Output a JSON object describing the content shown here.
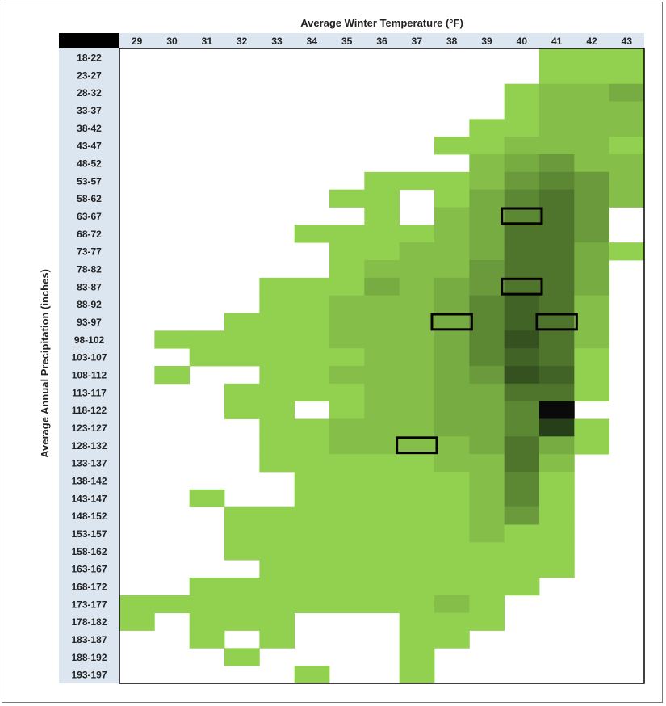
{
  "chart_data": {
    "type": "heatmap",
    "title": "",
    "xlabel": "Average Winter Temperature (°F)",
    "ylabel": "Average Annual Precipitation (inches)",
    "x_categories": [
      "29",
      "30",
      "31",
      "32",
      "33",
      "34",
      "35",
      "36",
      "37",
      "38",
      "39",
      "40",
      "41",
      "42",
      "43"
    ],
    "y_categories": [
      "18-22",
      "23-27",
      "28-32",
      "33-37",
      "38-42",
      "43-47",
      "48-52",
      "53-57",
      "58-62",
      "63-67",
      "68-72",
      "73-77",
      "78-82",
      "83-87",
      "88-92",
      "93-97",
      "98-102",
      "103-107",
      "108-112",
      "113-117",
      "118-122",
      "123-127",
      "128-132",
      "133-137",
      "138-142",
      "143-147",
      "148-152",
      "153-157",
      "158-162",
      "163-167",
      "168-172",
      "173-177",
      "178-182",
      "183-187",
      "188-192",
      "193-197"
    ],
    "value_scale": "relative intensity 0-10 (0 = empty cell, higher = darker green)",
    "colors": {
      "empty": "#ffffff",
      "low": "#92d050",
      "high": "#263f18",
      "max": "#0a0a0a",
      "header_bg": "#dce6f1",
      "corner": "#000000",
      "highlight_border": "#000000"
    },
    "values": [
      [
        0,
        0,
        0,
        0,
        0,
        0,
        0,
        0,
        0,
        0,
        0,
        0,
        1,
        1,
        1
      ],
      [
        0,
        0,
        0,
        0,
        0,
        0,
        0,
        0,
        0,
        0,
        0,
        0,
        1,
        1,
        1
      ],
      [
        0,
        0,
        0,
        0,
        0,
        0,
        0,
        0,
        0,
        0,
        0,
        1,
        2,
        2,
        3
      ],
      [
        0,
        0,
        0,
        0,
        0,
        0,
        0,
        0,
        0,
        0,
        0,
        1,
        2,
        2,
        2
      ],
      [
        0,
        0,
        0,
        0,
        0,
        0,
        0,
        0,
        0,
        0,
        1,
        1,
        2,
        2,
        2
      ],
      [
        0,
        0,
        0,
        0,
        0,
        0,
        0,
        0,
        0,
        1,
        1,
        2,
        2,
        2,
        1
      ],
      [
        0,
        0,
        0,
        0,
        0,
        0,
        0,
        0,
        0,
        0,
        2,
        3,
        4,
        2,
        2
      ],
      [
        0,
        0,
        0,
        0,
        0,
        0,
        0,
        1,
        1,
        1,
        2,
        4,
        5,
        4,
        2
      ],
      [
        0,
        0,
        0,
        0,
        0,
        0,
        1,
        1,
        0,
        1,
        3,
        5,
        6,
        4,
        2
      ],
      [
        0,
        0,
        0,
        0,
        0,
        0,
        0,
        1,
        0,
        2,
        3,
        5,
        6,
        4,
        0
      ],
      [
        0,
        0,
        0,
        0,
        0,
        1,
        1,
        1,
        1,
        2,
        3,
        6,
        6,
        4,
        0
      ],
      [
        0,
        0,
        0,
        0,
        0,
        0,
        1,
        1,
        2,
        2,
        3,
        6,
        6,
        3,
        1
      ],
      [
        0,
        0,
        0,
        0,
        0,
        0,
        1,
        2,
        2,
        2,
        4,
        6,
        6,
        3,
        0
      ],
      [
        0,
        0,
        0,
        0,
        1,
        1,
        1,
        3,
        2,
        3,
        4,
        6,
        6,
        3,
        0
      ],
      [
        0,
        0,
        0,
        0,
        1,
        1,
        2,
        2,
        2,
        3,
        5,
        7,
        6,
        2,
        0
      ],
      [
        0,
        0,
        0,
        1,
        1,
        1,
        2,
        2,
        2,
        3,
        5,
        7,
        6,
        2,
        0
      ],
      [
        0,
        1,
        1,
        1,
        1,
        1,
        2,
        2,
        2,
        3,
        5,
        8,
        6,
        2,
        0
      ],
      [
        0,
        0,
        1,
        1,
        1,
        1,
        1,
        2,
        2,
        3,
        5,
        7,
        6,
        1,
        0
      ],
      [
        0,
        1,
        0,
        0,
        1,
        1,
        2,
        2,
        2,
        3,
        4,
        8,
        7,
        1,
        0
      ],
      [
        0,
        0,
        0,
        1,
        1,
        1,
        1,
        2,
        2,
        3,
        3,
        6,
        6,
        1,
        0
      ],
      [
        0,
        0,
        0,
        1,
        1,
        0,
        1,
        2,
        2,
        3,
        3,
        5,
        10,
        0,
        0
      ],
      [
        0,
        0,
        0,
        0,
        1,
        1,
        2,
        2,
        2,
        3,
        3,
        5,
        9,
        1,
        0
      ],
      [
        0,
        0,
        0,
        0,
        1,
        1,
        2,
        2,
        2,
        2,
        3,
        6,
        3,
        1,
        0
      ],
      [
        0,
        0,
        0,
        0,
        1,
        1,
        1,
        1,
        1,
        2,
        2,
        6,
        2,
        0,
        0
      ],
      [
        0,
        0,
        0,
        0,
        0,
        1,
        1,
        1,
        1,
        1,
        2,
        5,
        1,
        0,
        0
      ],
      [
        0,
        0,
        1,
        0,
        0,
        1,
        1,
        1,
        1,
        1,
        2,
        5,
        1,
        0,
        0
      ],
      [
        0,
        0,
        0,
        1,
        1,
        1,
        1,
        1,
        1,
        1,
        2,
        4,
        1,
        0,
        0
      ],
      [
        0,
        0,
        0,
        1,
        1,
        1,
        1,
        1,
        1,
        1,
        2,
        1,
        1,
        0,
        0
      ],
      [
        0,
        0,
        0,
        1,
        1,
        1,
        1,
        1,
        1,
        1,
        1,
        1,
        1,
        0,
        0
      ],
      [
        0,
        0,
        0,
        0,
        1,
        1,
        1,
        1,
        1,
        1,
        1,
        1,
        1,
        0,
        0
      ],
      [
        0,
        0,
        1,
        1,
        1,
        1,
        1,
        1,
        1,
        1,
        1,
        1,
        0,
        0,
        0
      ],
      [
        1,
        1,
        1,
        1,
        1,
        1,
        1,
        1,
        1,
        2,
        1,
        0,
        0,
        0,
        0
      ],
      [
        1,
        0,
        1,
        1,
        1,
        0,
        0,
        0,
        1,
        1,
        1,
        0,
        0,
        0,
        0
      ],
      [
        0,
        0,
        1,
        0,
        1,
        0,
        0,
        0,
        1,
        1,
        0,
        0,
        0,
        0,
        0
      ],
      [
        0,
        0,
        0,
        1,
        0,
        0,
        0,
        0,
        1,
        0,
        0,
        0,
        0,
        0,
        0
      ],
      [
        0,
        0,
        0,
        0,
        0,
        1,
        0,
        0,
        1,
        0,
        0,
        0,
        0,
        0,
        0
      ]
    ],
    "highlighted_cells": [
      {
        "x": "40",
        "y": "63-67"
      },
      {
        "x": "40",
        "y": "83-87"
      },
      {
        "x": "38",
        "y": "93-97"
      },
      {
        "x": "41",
        "y": "93-97"
      },
      {
        "x": "37",
        "y": "128-132"
      }
    ],
    "grid": false,
    "legend": "none"
  }
}
